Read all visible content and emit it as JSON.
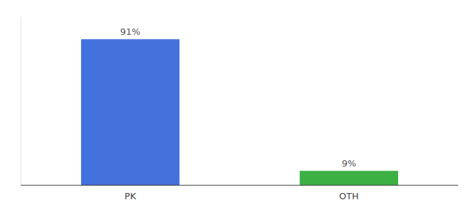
{
  "chart_data": {
    "type": "bar",
    "categories": [
      "PK",
      "OTH"
    ],
    "values": [
      91,
      9
    ],
    "value_labels": [
      "91%",
      "9%"
    ],
    "colors": [
      "#4472dd",
      "#3cb043"
    ],
    "ylim": [
      0,
      105
    ],
    "data_labels": true,
    "tick_labels": "x"
  }
}
